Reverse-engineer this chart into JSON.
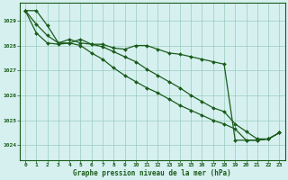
{
  "title": "Graphe pression niveau de la mer (hPa)",
  "bg_color": "#d6f0f0",
  "grid_color": "#99ccbb",
  "line_color": "#1a5c1a",
  "xlim": [
    -0.5,
    23.5
  ],
  "ylim": [
    1023.4,
    1029.7
  ],
  "yticks": [
    1024,
    1025,
    1026,
    1027,
    1028,
    1029
  ],
  "xticks": [
    0,
    1,
    2,
    3,
    4,
    5,
    6,
    7,
    8,
    9,
    10,
    11,
    12,
    13,
    14,
    15,
    16,
    17,
    18,
    19,
    20,
    21,
    22,
    23
  ],
  "hours": [
    0,
    1,
    2,
    3,
    4,
    5,
    6,
    7,
    8,
    9,
    10,
    11,
    12,
    13,
    14,
    15,
    16,
    17,
    18,
    19,
    20,
    21,
    22,
    23
  ],
  "line_upper": [
    1029.4,
    1029.4,
    1028.8,
    1028.1,
    1028.1,
    1028.25,
    1028.05,
    1028.05,
    1027.9,
    1027.85,
    1028.0,
    1028.0,
    1027.85,
    1027.7,
    1027.65,
    1027.55,
    1027.45,
    1027.35,
    1027.25,
    1024.2,
    1024.2,
    1024.2,
    1024.25,
    1024.5
  ],
  "line_mid": [
    1029.4,
    1028.85,
    1028.4,
    1028.1,
    1028.25,
    1028.1,
    1028.05,
    1027.95,
    1027.75,
    1027.55,
    1027.35,
    1027.05,
    1026.8,
    1026.55,
    1026.3,
    1026.0,
    1025.75,
    1025.5,
    1025.35,
    1024.85,
    1024.55,
    1024.25,
    1024.25,
    1024.5
  ],
  "line_lower": [
    1029.4,
    1028.5,
    1028.1,
    1028.05,
    1028.1,
    1028.0,
    1027.7,
    1027.45,
    1027.1,
    1026.8,
    1026.55,
    1026.3,
    1026.1,
    1025.85,
    1025.6,
    1025.4,
    1025.2,
    1025.0,
    1024.85,
    1024.65,
    1024.2,
    1024.2,
    1024.25,
    1024.5
  ]
}
